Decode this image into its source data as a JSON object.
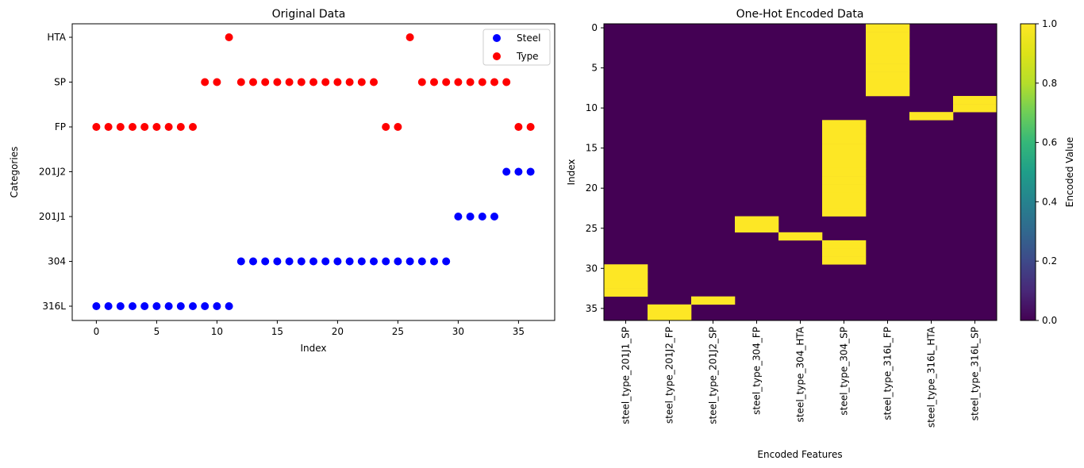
{
  "chart_data": [
    {
      "type": "scatter",
      "title": "Original Data",
      "xlabel": "Index",
      "ylabel": "Categories",
      "xlim": [
        -2,
        38
      ],
      "x_ticks": [
        0,
        5,
        10,
        15,
        20,
        25,
        30,
        35
      ],
      "categories": [
        "316L",
        "304",
        "201J1",
        "201J2",
        "FP",
        "SP",
        "HTA"
      ],
      "legend": {
        "placement": "top-right",
        "entries": [
          "Steel",
          "Type"
        ]
      },
      "series": [
        {
          "name": "Steel",
          "color": "#0000ff",
          "x": [
            0,
            1,
            2,
            3,
            4,
            5,
            6,
            7,
            8,
            9,
            10,
            11,
            12,
            13,
            14,
            15,
            16,
            17,
            18,
            19,
            20,
            21,
            22,
            23,
            24,
            25,
            26,
            27,
            28,
            29,
            30,
            31,
            32,
            33,
            34,
            35,
            36
          ],
          "y": [
            "316L",
            "316L",
            "316L",
            "316L",
            "316L",
            "316L",
            "316L",
            "316L",
            "316L",
            "316L",
            "316L",
            "316L",
            "304",
            "304",
            "304",
            "304",
            "304",
            "304",
            "304",
            "304",
            "304",
            "304",
            "304",
            "304",
            "304",
            "304",
            "304",
            "304",
            "304",
            "304",
            "201J1",
            "201J1",
            "201J1",
            "201J1",
            "201J2",
            "201J2",
            "201J2"
          ]
        },
        {
          "name": "Type",
          "color": "#ff0000",
          "x": [
            0,
            1,
            2,
            3,
            4,
            5,
            6,
            7,
            8,
            9,
            10,
            11,
            12,
            13,
            14,
            15,
            16,
            17,
            18,
            19,
            20,
            21,
            22,
            23,
            24,
            25,
            26,
            27,
            28,
            29,
            30,
            31,
            32,
            33,
            34,
            35,
            36
          ],
          "y": [
            "FP",
            "FP",
            "FP",
            "FP",
            "FP",
            "FP",
            "FP",
            "FP",
            "FP",
            "SP",
            "SP",
            "HTA",
            "SP",
            "SP",
            "SP",
            "SP",
            "SP",
            "SP",
            "SP",
            "SP",
            "SP",
            "SP",
            "SP",
            "SP",
            "FP",
            "FP",
            "HTA",
            "SP",
            "SP",
            "SP",
            "SP",
            "SP",
            "SP",
            "SP",
            "SP",
            "FP",
            "FP"
          ]
        }
      ]
    },
    {
      "type": "heatmap",
      "title": "One-Hot Encoded Data",
      "xlabel": "Encoded Features",
      "ylabel": "Index",
      "features": [
        "steel_type_201J1_SP",
        "steel_type_201J2_FP",
        "steel_type_201J2_SP",
        "steel_type_304_FP",
        "steel_type_304_HTA",
        "steel_type_304_SP",
        "steel_type_316L_FP",
        "steel_type_316L_HTA",
        "steel_type_316L_SP"
      ],
      "y_ticks": [
        0,
        5,
        10,
        15,
        20,
        25,
        30,
        35
      ],
      "n_rows": 37,
      "row_feature_index": [
        6,
        6,
        6,
        6,
        6,
        6,
        6,
        6,
        6,
        8,
        8,
        7,
        5,
        5,
        5,
        5,
        5,
        5,
        5,
        5,
        5,
        5,
        5,
        5,
        3,
        3,
        4,
        5,
        5,
        5,
        0,
        0,
        0,
        0,
        2,
        1,
        1
      ],
      "colorbar": {
        "label": "Encoded Value",
        "range": [
          0,
          1
        ],
        "ticks": [
          "0.0",
          "0.2",
          "0.4",
          "0.6",
          "0.8",
          "1.0"
        ],
        "low_color": "#440154",
        "high_color": "#fde725"
      }
    }
  ]
}
